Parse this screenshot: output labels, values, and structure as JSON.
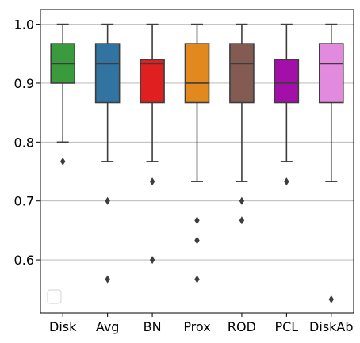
{
  "chart_data": {
    "type": "box",
    "title": "",
    "xlabel": "",
    "ylabel": "",
    "categories": [
      "Disk",
      "Avg",
      "BN",
      "Prox",
      "ROD",
      "PCL",
      "DiskAb"
    ],
    "ylim": [
      0.51,
      1.025
    ],
    "yticks": [
      0.6,
      0.7,
      0.8,
      0.9,
      1.0
    ],
    "ytick_labels": [
      "0.6",
      "0.7",
      "0.8",
      "0.9",
      "1.0"
    ],
    "grid": "horizontal",
    "legend": "bottom-left (empty)",
    "boxes": [
      {
        "name": "Disk",
        "color": "#3a9b3e",
        "whisker_low": 0.8,
        "q1": 0.9,
        "median": 0.933,
        "q3": 0.967,
        "whisker_high": 1.0,
        "outliers": [
          0.767
        ]
      },
      {
        "name": "Avg",
        "color": "#3274a1",
        "whisker_low": 0.767,
        "q1": 0.867,
        "median": 0.933,
        "q3": 0.967,
        "whisker_high": 1.0,
        "outliers": [
          0.7,
          0.567
        ]
      },
      {
        "name": "BN",
        "color": "#e02020",
        "whisker_low": 0.767,
        "q1": 0.867,
        "median": 0.933,
        "q3": 0.94,
        "whisker_high": 1.0,
        "outliers": [
          0.733,
          0.6
        ]
      },
      {
        "name": "Prox",
        "color": "#e1891e",
        "whisker_low": 0.733,
        "q1": 0.867,
        "median": 0.9,
        "q3": 0.967,
        "whisker_high": 1.0,
        "outliers": [
          0.667,
          0.633,
          0.567
        ]
      },
      {
        "name": "ROD",
        "color": "#845b53",
        "whisker_low": 0.733,
        "q1": 0.867,
        "median": 0.933,
        "q3": 0.967,
        "whisker_high": 1.0,
        "outliers": [
          0.7,
          0.667
        ]
      },
      {
        "name": "PCL",
        "color": "#a30fa8",
        "whisker_low": 0.767,
        "q1": 0.867,
        "median": 0.9,
        "q3": 0.94,
        "whisker_high": 1.0,
        "outliers": [
          0.733
        ]
      },
      {
        "name": "DiskAb",
        "color": "#e28bde",
        "whisker_low": 0.733,
        "q1": 0.867,
        "median": 0.933,
        "q3": 0.967,
        "whisker_high": 1.0,
        "outliers": [
          0.533
        ]
      }
    ]
  }
}
